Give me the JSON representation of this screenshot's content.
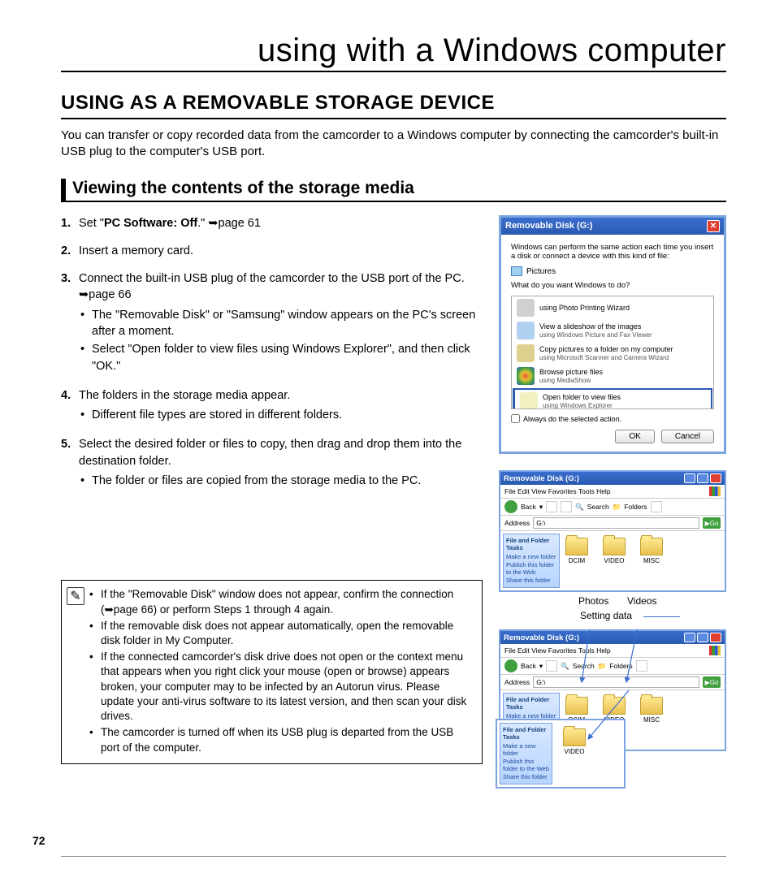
{
  "chapter_title": "using with a Windows computer",
  "section_title": "USING AS A REMOVABLE STORAGE DEVICE",
  "intro": "You can transfer or copy recorded data from the camcorder to a Windows computer by connecting the camcorder's built-in USB plug to the computer's USB port.",
  "subsection_title": "Viewing the contents of the storage media",
  "page_number": "72",
  "steps": [
    {
      "num": "1.",
      "html": "Set \"<b>PC Software: Off</b>.\" ➥page 61"
    },
    {
      "num": "2.",
      "html": "Insert a memory card."
    },
    {
      "num": "3.",
      "html": "Connect the built-in USB plug of the camcorder to the USB port of the PC. ➥page 66",
      "subs": [
        "The \"Removable Disk\" or \"Samsung\" window appears on the PC's screen after a moment.",
        "Select \"Open folder to view files using Windows Explorer\", and then click \"OK.\""
      ]
    },
    {
      "num": "4.",
      "html": "The folders in the storage media appear.",
      "subs": [
        "Different file types are stored in different folders."
      ]
    },
    {
      "num": "5.",
      "html": "Select the desired folder or files to copy, then drag and drop them into the destination folder.",
      "subs": [
        "The folder or files are copied from the storage media to the PC."
      ]
    }
  ],
  "notes": [
    "If the \"Removable Disk\" window does not appear, confirm the connection (➥page 66) or perform Steps 1 through 4 again.",
    "If the removable disk does not appear automatically, open the removable disk folder in My Computer.",
    "If the connected camcorder's disk drive does not open or the context menu that appears when you right click your mouse (open or browse) appears broken, your computer may to be infected by an Autorun virus. Please update your anti-virus software to its latest version, and then scan your disk drives.",
    "The camcorder is turned off when its USB plug is departed from the USB port of the computer."
  ],
  "dialog": {
    "title": "Removable Disk (G:)",
    "msg": "Windows can perform the same action each time you insert a disk or connect a device with this kind of file:",
    "pictures": "Pictures",
    "prompt": "What do you want Windows to do?",
    "actions": [
      {
        "t1": "using Photo Printing Wizard",
        "t2": "",
        "color": "#d0d0d0"
      },
      {
        "t1": "View a slideshow of the images",
        "t2": "using Windows Picture and Fax Viewer",
        "color": "#b0d0f0"
      },
      {
        "t1": "Copy pictures to a folder on my computer",
        "t2": "using Microsoft Scanner and Camera Wizard",
        "color": "#e0d090"
      },
      {
        "t1": "Browse picture files",
        "t2": "using MediaShow",
        "color": "radial-gradient(#f05030,#e0c030,#40a040,#3050e0)"
      },
      {
        "t1": "Open folder to view files",
        "t2": "using Windows Explorer",
        "color": "#f0f0c0",
        "selected": true
      }
    ],
    "always": "Always do the selected action.",
    "ok": "OK",
    "cancel": "Cancel"
  },
  "explorer": {
    "title": "Removable Disk (G:)",
    "menu": "File   Edit   View   Favorites   Tools   Help",
    "back": "Back",
    "search": "Search",
    "folders_btn": "Folders",
    "address_label": "Address",
    "address": "G:\\",
    "go": "Go",
    "task_header": "File and Folder Tasks",
    "tasks": [
      "Make a new folder",
      "Publish this folder to the Web",
      "Share this folder"
    ],
    "folders": [
      "DCIM",
      "VIDEO",
      "MISC"
    ],
    "sub_folder": "VIDEO"
  },
  "labels": {
    "photos": "Photos",
    "videos": "Videos",
    "setting": "Setting data"
  },
  "colors": {
    "xp_blue": "#3a6ecf",
    "xp_border": "#7aa3e0"
  }
}
